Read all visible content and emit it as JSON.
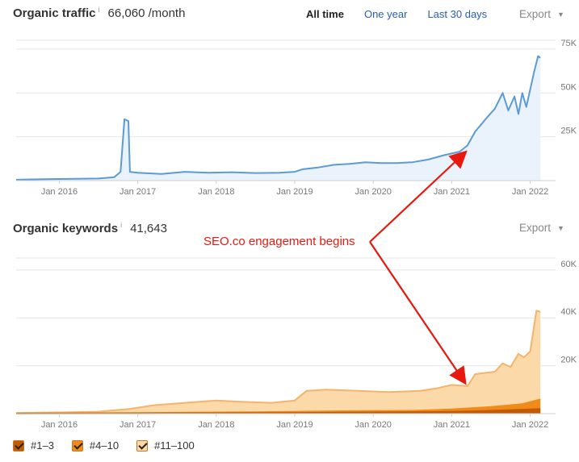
{
  "colors": {
    "traffic_line": "#5b9bd5",
    "traffic_fill": "#eaf2fb",
    "kw_11_100": "#fcd9a8",
    "kw_11_100_line": "#f5b36b",
    "kw_4_10": "#f08a1a",
    "kw_1_3": "#c25a00",
    "annotation": "#e8180f",
    "tab_link": "#2a5db0"
  },
  "traffic": {
    "title": "Organic traffic",
    "info": "i",
    "value": "66,060 /month",
    "tabs": {
      "all_time": "All time",
      "one_year": "One year",
      "last_30": "Last 30 days"
    },
    "export_label": "Export"
  },
  "keywords": {
    "title": "Organic keywords",
    "info": "i",
    "value": "41,643",
    "export_label": "Export"
  },
  "annotation": {
    "text": "SEO.co engagement begins"
  },
  "legend": [
    "#1–3",
    "#4–10",
    "#11–100"
  ],
  "chart_data": [
    {
      "type": "area",
      "title": "Organic traffic",
      "x_tick_labels": [
        "Jan 2016",
        "Jan 2017",
        "Jan 2018",
        "Jan 2019",
        "Jan 2020",
        "Jan 2021",
        "Jan 2022"
      ],
      "y_tick_labels": [
        "25K",
        "50K",
        "75K"
      ],
      "ylim": [
        0,
        80000
      ],
      "xlim": [
        2015.45,
        2022.2
      ],
      "series": [
        {
          "points": [
            [
              2015.45,
              500
            ],
            [
              2015.8,
              800
            ],
            [
              2016.2,
              1000
            ],
            [
              2016.5,
              1200
            ],
            [
              2016.7,
              2000
            ],
            [
              2016.78,
              5000
            ],
            [
              2016.83,
              35000
            ],
            [
              2016.88,
              34000
            ],
            [
              2016.9,
              5000
            ],
            [
              2017.0,
              4500
            ],
            [
              2017.3,
              3800
            ],
            [
              2017.6,
              5000
            ],
            [
              2017.9,
              4500
            ],
            [
              2018.2,
              4800
            ],
            [
              2018.5,
              4300
            ],
            [
              2018.8,
              4500
            ],
            [
              2019.0,
              5000
            ],
            [
              2019.1,
              6500
            ],
            [
              2019.3,
              7500
            ],
            [
              2019.5,
              9000
            ],
            [
              2019.7,
              9500
            ],
            [
              2019.9,
              10500
            ],
            [
              2020.1,
              10000
            ],
            [
              2020.3,
              10000
            ],
            [
              2020.5,
              10500
            ],
            [
              2020.7,
              12000
            ],
            [
              2020.9,
              14500
            ],
            [
              2021.1,
              16500
            ],
            [
              2021.2,
              20000
            ],
            [
              2021.3,
              28000
            ],
            [
              2021.45,
              36000
            ],
            [
              2021.55,
              41000
            ],
            [
              2021.65,
              50000
            ],
            [
              2021.72,
              40000
            ],
            [
              2021.8,
              48000
            ],
            [
              2021.85,
              38000
            ],
            [
              2021.9,
              50000
            ],
            [
              2021.95,
              42000
            ],
            [
              2022.0,
              52000
            ],
            [
              2022.05,
              62000
            ],
            [
              2022.1,
              71000
            ],
            [
              2022.13,
              70000
            ]
          ]
        }
      ]
    },
    {
      "type": "area",
      "title": "Organic keywords",
      "x_tick_labels": [
        "Jan 2016",
        "Jan 2017",
        "Jan 2018",
        "Jan 2019",
        "Jan 2020",
        "Jan 2021",
        "Jan 2022"
      ],
      "y_tick_labels": [
        "20K",
        "40K",
        "60K"
      ],
      "ylim": [
        0,
        65000
      ],
      "xlim": [
        2015.45,
        2022.2
      ],
      "legend_position": "bottom-left",
      "series": [
        {
          "name": "#11–100",
          "points": [
            [
              2015.45,
              300
            ],
            [
              2016.0,
              500
            ],
            [
              2016.5,
              800
            ],
            [
              2016.9,
              2000
            ],
            [
              2017.2,
              3500
            ],
            [
              2017.6,
              4500
            ],
            [
              2018.0,
              5500
            ],
            [
              2018.3,
              5000
            ],
            [
              2018.7,
              4500
            ],
            [
              2019.0,
              5500
            ],
            [
              2019.15,
              9500
            ],
            [
              2019.4,
              10000
            ],
            [
              2019.8,
              9500
            ],
            [
              2020.2,
              9000
            ],
            [
              2020.6,
              9500
            ],
            [
              2020.8,
              10500
            ],
            [
              2021.0,
              12000
            ],
            [
              2021.2,
              11500
            ],
            [
              2021.3,
              16500
            ],
            [
              2021.55,
              17500
            ],
            [
              2021.65,
              21000
            ],
            [
              2021.75,
              19500
            ],
            [
              2021.85,
              25000
            ],
            [
              2021.92,
              23500
            ],
            [
              2022.0,
              26000
            ],
            [
              2022.08,
              43000
            ],
            [
              2022.13,
              42500
            ]
          ]
        },
        {
          "name": "#4–10",
          "points": [
            [
              2015.45,
              100
            ],
            [
              2017.0,
              300
            ],
            [
              2018.5,
              600
            ],
            [
              2019.5,
              1000
            ],
            [
              2020.5,
              1200
            ],
            [
              2021.0,
              1800
            ],
            [
              2021.5,
              2800
            ],
            [
              2021.9,
              4000
            ],
            [
              2022.13,
              6000
            ]
          ]
        },
        {
          "name": "#1–3",
          "points": [
            [
              2015.45,
              50
            ],
            [
              2017.0,
              100
            ],
            [
              2019.0,
              300
            ],
            [
              2020.5,
              600
            ],
            [
              2021.0,
              800
            ],
            [
              2021.5,
              1200
            ],
            [
              2022.13,
              2000
            ]
          ]
        }
      ]
    }
  ]
}
